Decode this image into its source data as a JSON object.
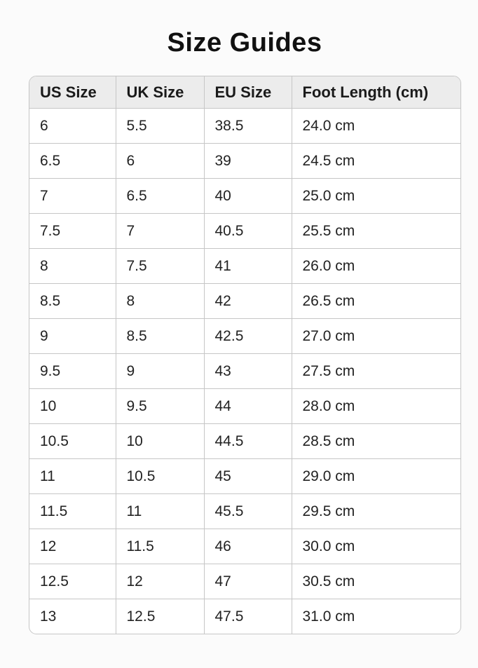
{
  "title": "Size Guides",
  "table": {
    "headers": [
      "US Size",
      "UK Size",
      "EU Size",
      "Foot Length (cm)"
    ],
    "rows": [
      [
        "6",
        "5.5",
        "38.5",
        "24.0 cm"
      ],
      [
        "6.5",
        "6",
        "39",
        "24.5 cm"
      ],
      [
        "7",
        "6.5",
        "40",
        "25.0 cm"
      ],
      [
        "7.5",
        "7",
        "40.5",
        "25.5 cm"
      ],
      [
        "8",
        "7.5",
        "41",
        "26.0 cm"
      ],
      [
        "8.5",
        "8",
        "42",
        "26.5 cm"
      ],
      [
        "9",
        "8.5",
        "42.5",
        "27.0 cm"
      ],
      [
        "9.5",
        "9",
        "43",
        "27.5 cm"
      ],
      [
        "10",
        "9.5",
        "44",
        "28.0 cm"
      ],
      [
        "10.5",
        "10",
        "44.5",
        "28.5 cm"
      ],
      [
        "11",
        "10.5",
        "45",
        "29.0 cm"
      ],
      [
        "11.5",
        "11",
        "45.5",
        "29.5 cm"
      ],
      [
        "12",
        "11.5",
        "46",
        "30.0 cm"
      ],
      [
        "12.5",
        "12",
        "47",
        "30.5 cm"
      ],
      [
        "13",
        "12.5",
        "47.5",
        "31.0 cm"
      ]
    ]
  }
}
